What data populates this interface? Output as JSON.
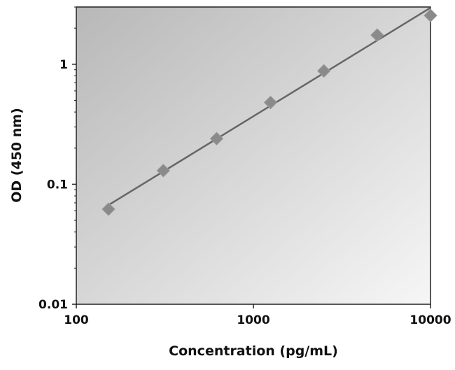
{
  "chart_data": {
    "type": "scatter",
    "title": "",
    "xlabel": "Concentration (pg/mL)",
    "ylabel": "OD (450 nm)",
    "x_scale": "log",
    "y_scale": "log",
    "xlim": [
      100,
      10000
    ],
    "ylim": [
      0.01,
      3
    ],
    "x_ticks": [
      {
        "v": 100,
        "label": "100"
      },
      {
        "v": 1000,
        "label": "1000"
      },
      {
        "v": 10000,
        "label": "10000"
      }
    ],
    "y_ticks": [
      {
        "v": 0.01,
        "label": "0.01"
      },
      {
        "v": 0.1,
        "label": "0.1"
      },
      {
        "v": 1,
        "label": "1"
      }
    ],
    "grid": false,
    "series": [
      {
        "x": [
          152,
          310,
          620,
          1250,
          2500,
          5000,
          10000
        ],
        "y": [
          0.062,
          0.13,
          0.24,
          0.48,
          0.88,
          1.75,
          2.55
        ],
        "marker": "diamond",
        "trendline": "power"
      }
    ],
    "colors": {
      "background_top": "#bdbdbd",
      "background_bottom": "#f4f4f4",
      "marker": "#8a8a8a",
      "line": "#666666"
    }
  }
}
